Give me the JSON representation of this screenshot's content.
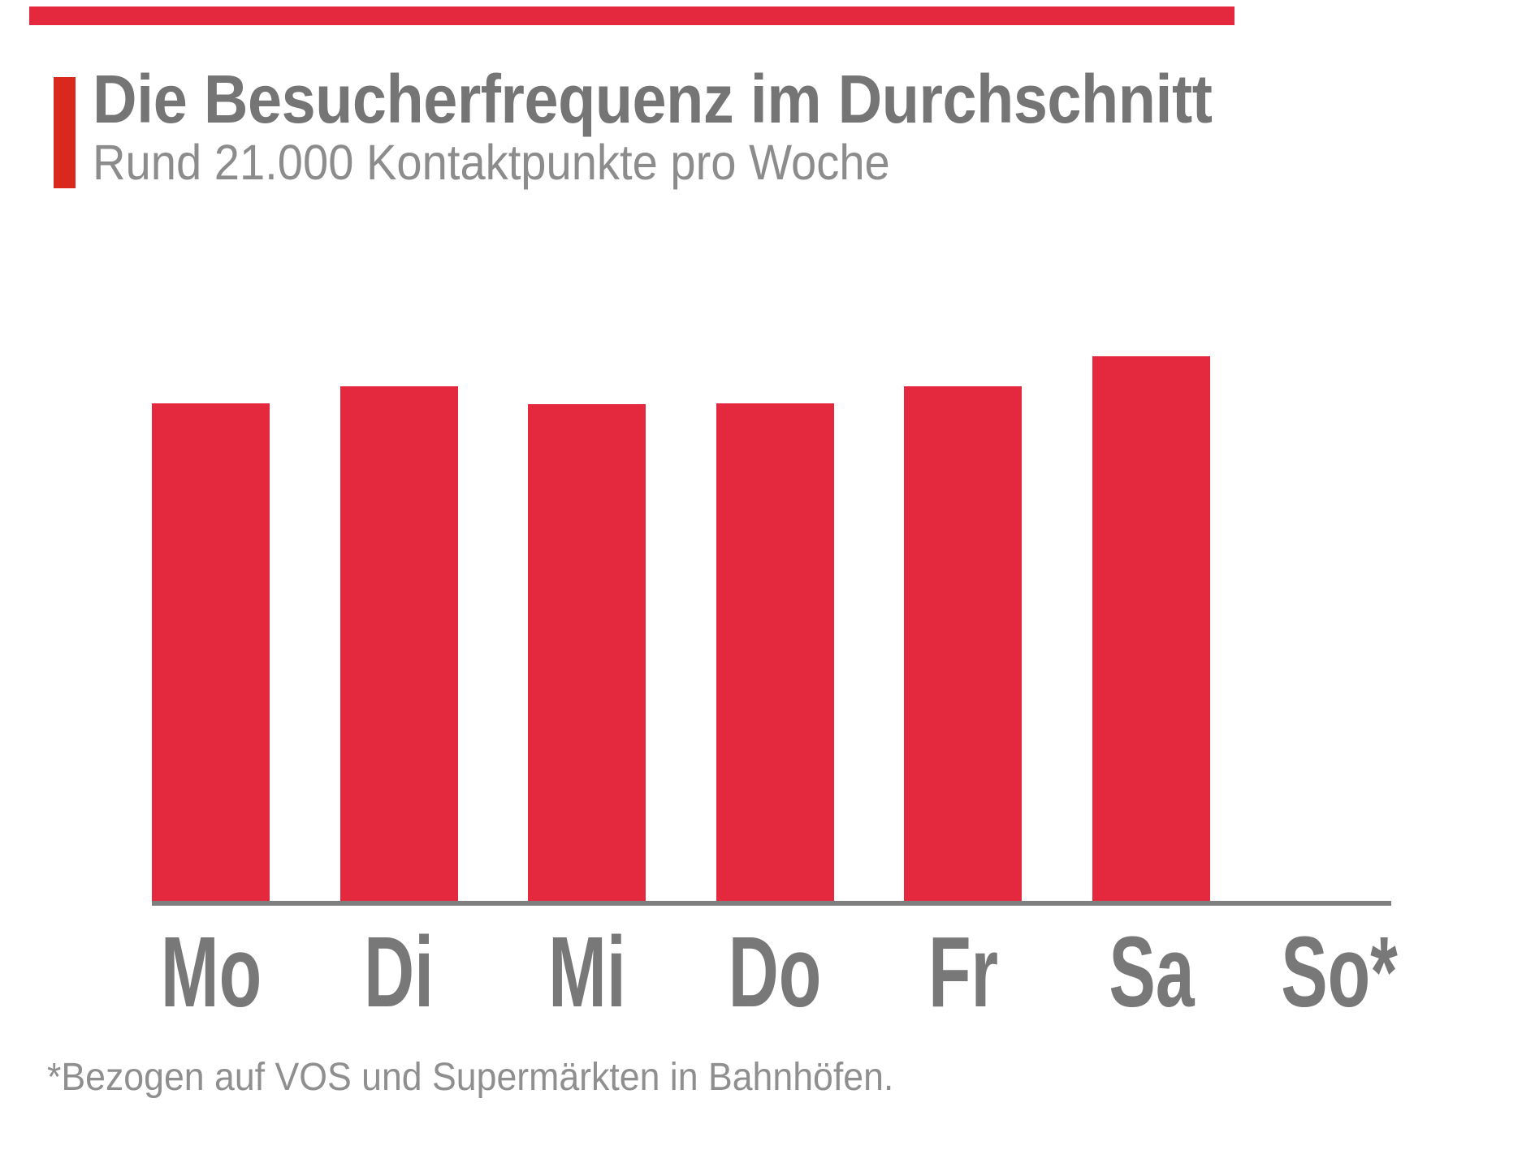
{
  "page": {
    "background": "#ffffff"
  },
  "decor": {
    "top_bar_color": "#e4293f",
    "accent_bar_color": "#d9281d"
  },
  "header": {
    "title": "Die Besucherfrequenz im Durchschnitt",
    "subtitle": "Rund 21.000 Kontaktpunkte pro Woche",
    "title_color": "#757575",
    "subtitle_color": "#8c8c8c"
  },
  "chart_data": {
    "type": "bar",
    "title": "Die Besucherfrequenz im Durchschnitt",
    "subtitle": "Rund 21.000 Kontaktpunkte pro Woche",
    "categories": [
      "Mo",
      "Di",
      "Mi",
      "Do",
      "Fr",
      "Sa",
      "So*"
    ],
    "values_percent_of_max": [
      91.3,
      94.5,
      91.2,
      91.3,
      94.5,
      100,
      0
    ],
    "bar_color": "#e4293f",
    "axis_line_color": "#7f7f7f",
    "tick_label_color": "#787878",
    "grid": false,
    "legend": false,
    "y_axis": "hidden",
    "annotation": "So* (Sunday) has no bar; asterisk refers to the footnote"
  },
  "footnote": {
    "text": "*Bezogen auf VOS und Supermärkten in Bahnhöfen.",
    "color": "#8f8f8f"
  }
}
